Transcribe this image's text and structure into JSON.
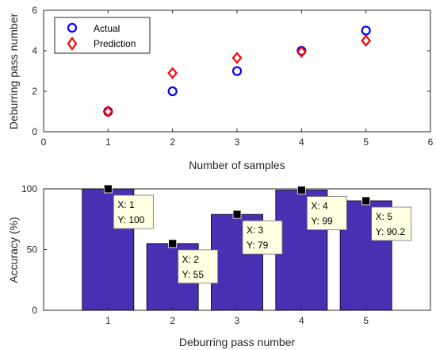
{
  "chart_data": [
    {
      "type": "scatter",
      "xlabel": "Number of samples",
      "ylabel": "Deburring pass number",
      "xlim": [
        0,
        6
      ],
      "ylim": [
        0,
        6
      ],
      "xticks": [
        "0",
        "1",
        "2",
        "3",
        "4",
        "5",
        "6"
      ],
      "yticks": [
        "0",
        "2",
        "4",
        "6"
      ],
      "legend_position": "top-left",
      "series": [
        {
          "name": "Actual",
          "marker": "circle",
          "color": "#0000ff",
          "x": [
            1,
            2,
            3,
            4,
            5
          ],
          "y": [
            1,
            2,
            3,
            4,
            5
          ]
        },
        {
          "name": "Prediction",
          "marker": "diamond",
          "color": "#ff0000",
          "x": [
            1,
            2,
            3,
            4,
            5
          ],
          "y": [
            1,
            2.9,
            3.65,
            3.95,
            4.5
          ]
        }
      ]
    },
    {
      "type": "bar",
      "xlabel": "Deburring pass number",
      "ylabel": "Accuracy (%)",
      "categories": [
        1,
        2,
        3,
        4,
        5
      ],
      "xticks": [
        "1",
        "2",
        "3",
        "4",
        "5"
      ],
      "yticks": [
        "0",
        "50",
        "100"
      ],
      "xlim": [
        0,
        6
      ],
      "ylim": [
        0,
        100
      ],
      "bar_color": "#4b2fb3",
      "values": [
        100,
        55,
        79,
        99,
        90.2
      ],
      "datatips": [
        {
          "x": "X: 1",
          "y": "Y: 100"
        },
        {
          "x": "X: 2",
          "y": "Y: 55"
        },
        {
          "x": "X: 3",
          "y": "Y: 79"
        },
        {
          "x": "X: 4",
          "y": "Y: 99"
        },
        {
          "x": "X: 5",
          "y": "Y: 90.2"
        }
      ]
    }
  ]
}
